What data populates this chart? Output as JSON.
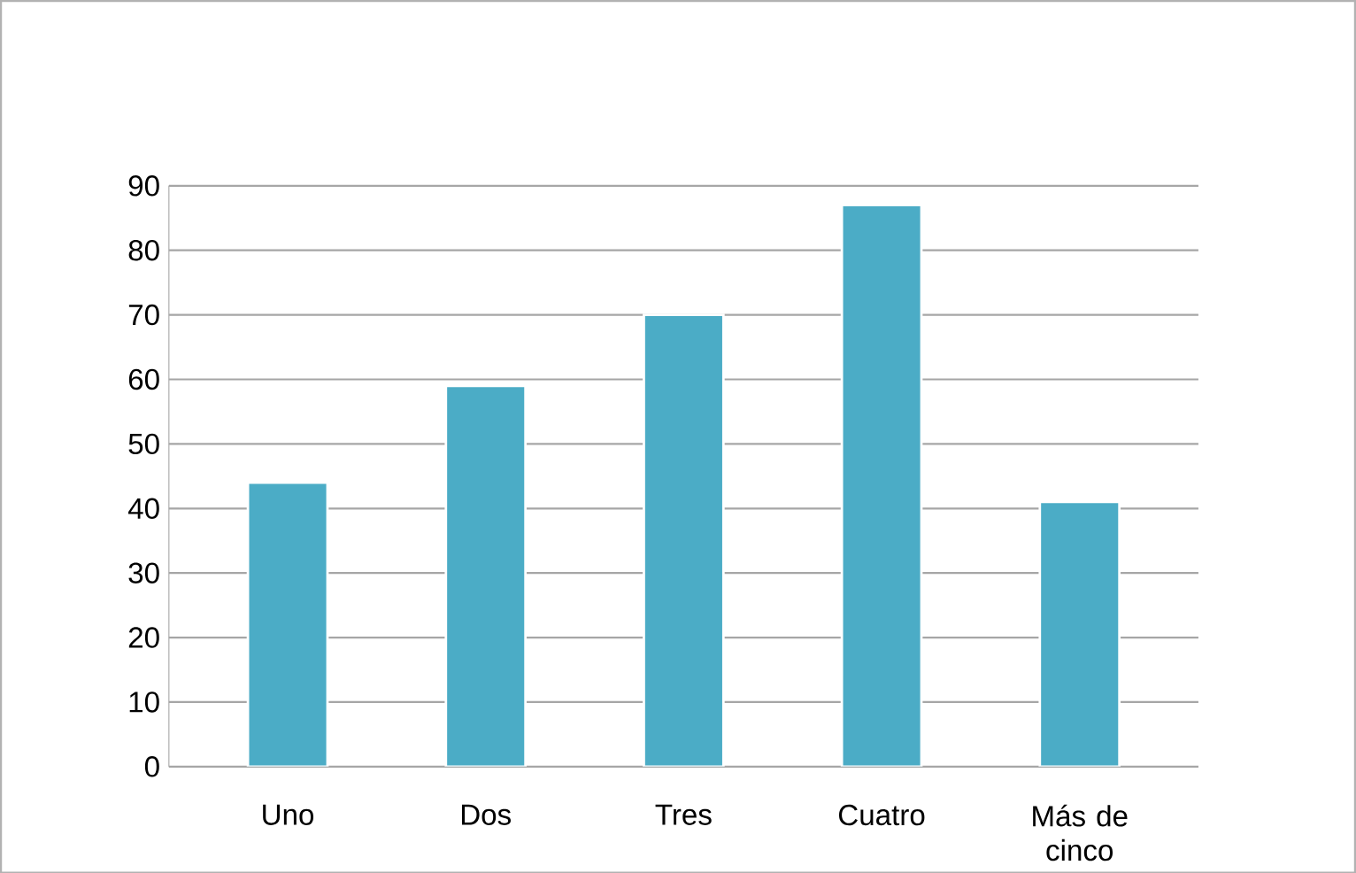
{
  "chart_data": {
    "type": "bar",
    "categories": [
      "Uno",
      "Dos",
      "Tres",
      "Cuatro",
      "Más de cinco"
    ],
    "values": [
      44,
      59,
      70,
      87,
      41
    ],
    "color": "#4bacc6",
    "ylim": [
      0,
      90
    ],
    "yticks": [
      0,
      10,
      20,
      30,
      40,
      50,
      60,
      70,
      80,
      90
    ],
    "grid": "y"
  }
}
